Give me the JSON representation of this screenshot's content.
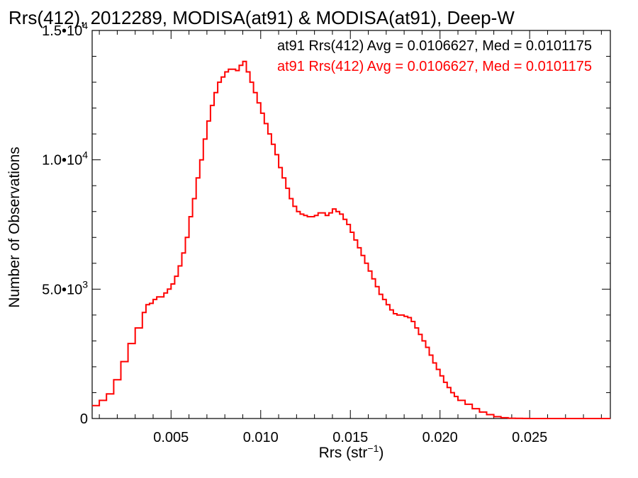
{
  "chart_data": {
    "type": "line",
    "title": "Rrs(412), 2012289, MODISA(at91) & MODISA(at91), Deep-W",
    "xlabel": "Rrs (str⁻¹)",
    "ylabel": "Number of Observations",
    "xlim": [
      0.0006,
      0.0295
    ],
    "ylim": [
      0,
      15000
    ],
    "x_ticks": [
      {
        "value": 0.005,
        "label": "0.005"
      },
      {
        "value": 0.01,
        "label": "0.010"
      },
      {
        "value": 0.015,
        "label": "0.015"
      },
      {
        "value": 0.02,
        "label": "0.020"
      },
      {
        "value": 0.025,
        "label": "0.025"
      }
    ],
    "y_ticks": [
      {
        "value": 0,
        "label": "0",
        "exp": ""
      },
      {
        "value": 5000,
        "label": "5.0•10",
        "exp": "3"
      },
      {
        "value": 10000,
        "label": "1.0•10",
        "exp": "4"
      },
      {
        "value": 15000,
        "label": "1.5•10",
        "exp": "4"
      }
    ],
    "annotations": [
      {
        "text": "at91 Rrs(412) Avg = 0.0106627, Med = 0.0101175",
        "color": "#000000"
      },
      {
        "text": "at91 Rrs(412) Avg = 0.0106627, Med = 0.0101175",
        "color": "#ff0000"
      }
    ],
    "grid": false,
    "series": [
      {
        "color": "#ff0000",
        "x": [
          0.0006,
          0.001,
          0.0014,
          0.0018,
          0.0022,
          0.0026,
          0.003,
          0.0034,
          0.0036,
          0.0038,
          0.004,
          0.0042,
          0.0044,
          0.0046,
          0.0048,
          0.005,
          0.0052,
          0.0054,
          0.0056,
          0.0058,
          0.006,
          0.0062,
          0.0064,
          0.0066,
          0.0068,
          0.007,
          0.0072,
          0.0074,
          0.0076,
          0.0078,
          0.008,
          0.0082,
          0.0084,
          0.0086,
          0.0088,
          0.009,
          0.0092,
          0.0094,
          0.0096,
          0.0098,
          0.01,
          0.0102,
          0.0104,
          0.0106,
          0.0108,
          0.011,
          0.0112,
          0.0114,
          0.0116,
          0.0118,
          0.012,
          0.0122,
          0.0124,
          0.0126,
          0.0128,
          0.013,
          0.0132,
          0.0134,
          0.0136,
          0.0138,
          0.014,
          0.0142,
          0.0144,
          0.0146,
          0.0148,
          0.015,
          0.0152,
          0.0154,
          0.0156,
          0.0158,
          0.016,
          0.0162,
          0.0164,
          0.0166,
          0.0168,
          0.017,
          0.0172,
          0.0174,
          0.0176,
          0.0178,
          0.018,
          0.0182,
          0.0184,
          0.0186,
          0.0188,
          0.019,
          0.0192,
          0.0194,
          0.0196,
          0.0198,
          0.02,
          0.0202,
          0.0204,
          0.0206,
          0.0208,
          0.021,
          0.0214,
          0.0218,
          0.0222,
          0.0226,
          0.023,
          0.0234,
          0.0238,
          0.0242,
          0.0246,
          0.025,
          0.026,
          0.027,
          0.028,
          0.029,
          0.0295
        ],
        "y": [
          500,
          700,
          950,
          1500,
          2200,
          2900,
          3500,
          4100,
          4400,
          4450,
          4600,
          4700,
          4700,
          4850,
          5000,
          5200,
          5500,
          5900,
          6400,
          7000,
          7800,
          8500,
          9300,
          10000,
          10800,
          11500,
          12100,
          12600,
          13000,
          13200,
          13400,
          13500,
          13500,
          13450,
          13650,
          13800,
          13400,
          13000,
          12600,
          12200,
          11800,
          11400,
          11000,
          10600,
          10200,
          9700,
          9300,
          8900,
          8500,
          8200,
          8000,
          7900,
          7850,
          7800,
          7800,
          7850,
          7950,
          7950,
          7850,
          7950,
          8100,
          8000,
          7900,
          7700,
          7500,
          7200,
          6900,
          6600,
          6300,
          6000,
          5700,
          5400,
          5100,
          4800,
          4600,
          4400,
          4200,
          4050,
          4000,
          4000,
          3950,
          3900,
          3750,
          3500,
          3250,
          3000,
          2750,
          2450,
          2150,
          1900,
          1650,
          1400,
          1200,
          1000,
          850,
          700,
          550,
          380,
          250,
          150,
          70,
          30,
          10,
          5,
          2,
          0,
          0,
          0,
          0,
          0,
          0
        ]
      }
    ]
  }
}
